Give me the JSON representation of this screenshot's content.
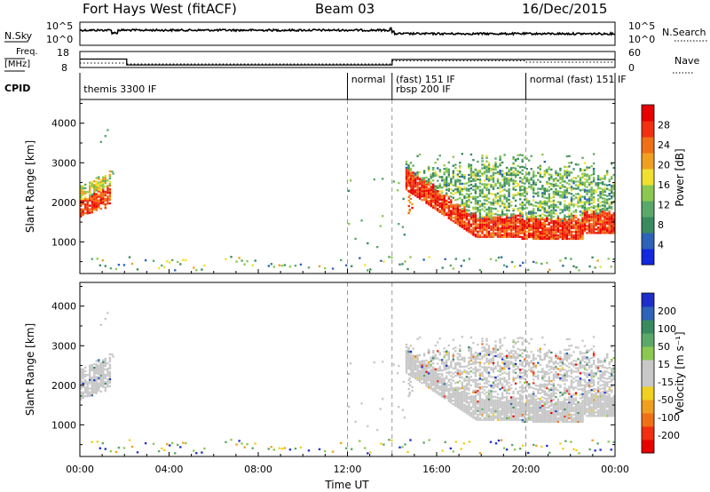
{
  "header": {
    "station": "Fort Hays West (fitACF)",
    "beam": "Beam 03",
    "date": "16/Dec/2015"
  },
  "strip_panels": {
    "nsky": {
      "label": "N.Sky",
      "right_label": "N.Search",
      "left_ticks": [
        "10^5",
        "10^0"
      ],
      "right_ticks": [
        "10^5",
        "10^0"
      ]
    },
    "freq": {
      "label_line1": "Freq.",
      "label_line2": "[MHz]",
      "left_ticks": [
        "18",
        "8"
      ],
      "right_ticks": [
        "60",
        "0"
      ],
      "right_label": "Nave",
      "freq_steps": [
        {
          "from": 0,
          "to": 2.1,
          "value": 13.3
        },
        {
          "from": 2.1,
          "to": 14.0,
          "value": 9.6
        },
        {
          "from": 14.0,
          "to": 24.0,
          "value": 13.0
        }
      ]
    },
    "cpid": {
      "label": "CPID",
      "dividers_hours": [
        12.0,
        14.0,
        20.0
      ],
      "segments": [
        {
          "text": "themis 3300 IF",
          "hour": 0.05,
          "row": 0
        },
        {
          "text": "normal",
          "hour": 12.05,
          "row": -1
        },
        {
          "text": "(fast) 151 IF",
          "hour": 14.05,
          "row": -1
        },
        {
          "text": "rbsp 200 IF",
          "hour": 14.05,
          "row": 0
        },
        {
          "text": "normal (fast) 151 IF",
          "hour": 20.05,
          "row": -1
        }
      ]
    }
  },
  "chart_data": [
    {
      "type": "heatmap",
      "name": "power",
      "ylabel": "Slant Range [km]",
      "ylim": [
        200,
        4600
      ],
      "yticks": [
        "4000",
        "3000",
        "2000",
        "1000"
      ],
      "ytick_values": [
        4000,
        3000,
        2000,
        1000
      ],
      "xlim_hours": [
        0,
        24
      ],
      "colorbar": {
        "label": "Power [dB]",
        "ticks": [
          "28",
          "24",
          "20",
          "16",
          "12",
          "8",
          "4"
        ],
        "tick_values": [
          28,
          24,
          20,
          16,
          12,
          8,
          4
        ],
        "range": [
          0,
          32
        ],
        "colors": [
          "#1428e0",
          "#2d63b8",
          "#3a8a60",
          "#5aa86a",
          "#8cc850",
          "#f0e030",
          "#f0a020",
          "#f07018",
          "#f03010",
          "#e80000"
        ]
      },
      "regions": [
        {
          "hours": [
            0.0,
            1.3
          ],
          "range": [
            1500,
            2700
          ],
          "value": 24
        },
        {
          "hours": [
            14.6,
            24.0
          ],
          "range": [
            1100,
            2500
          ],
          "value": 26
        },
        {
          "hours": [
            14.6,
            24.0
          ],
          "range": [
            2000,
            3200
          ],
          "value": 10
        }
      ]
    },
    {
      "type": "heatmap",
      "name": "velocity",
      "ylabel": "Slant Range [km]",
      "ylim": [
        200,
        4600
      ],
      "yticks": [
        "4000",
        "3000",
        "2000",
        "1000"
      ],
      "ytick_values": [
        4000,
        3000,
        2000,
        1000
      ],
      "xlim_hours": [
        0,
        24
      ],
      "xlabel": "Time UT",
      "xticks": [
        "00:00",
        "04:00",
        "08:00",
        "12:00",
        "16:00",
        "20:00",
        "00:00"
      ],
      "xtick_hours": [
        0,
        4,
        8,
        12,
        16,
        20,
        24
      ],
      "colorbar": {
        "label": "Velocity [m s⁻¹]",
        "ticks": [
          "200",
          "100",
          "50",
          "15",
          "-15",
          "-50",
          "-100",
          "-200"
        ],
        "colors": [
          "#1e2ec8",
          "#2d63b8",
          "#3a8a60",
          "#5aa86a",
          "#8cc850",
          "#c8c8c8",
          "#c8c8c8",
          "#f0d020",
          "#f0a020",
          "#f07018",
          "#f03010",
          "#e80000"
        ]
      },
      "regions": [
        {
          "hours": [
            0.0,
            1.3
          ],
          "range": [
            1500,
            2700
          ],
          "value": 0
        },
        {
          "hours": [
            14.6,
            24.0
          ],
          "range": [
            1100,
            2700
          ],
          "value": 0
        }
      ]
    }
  ]
}
